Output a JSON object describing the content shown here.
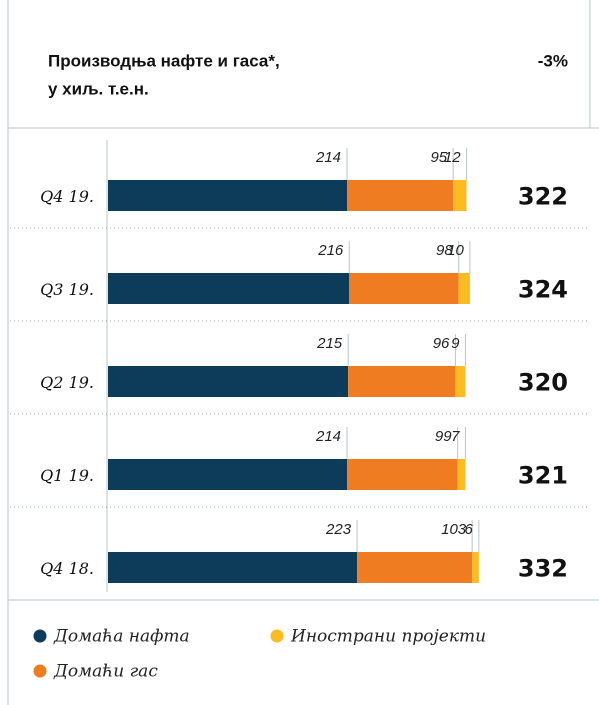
{
  "chart_data": {
    "type": "bar",
    "title": "Производња нафте и гаса*,",
    "subtitle": "у хиљ. т.е.н.",
    "change": "-3%",
    "orientation": "horizontal",
    "stacked": true,
    "categories": [
      "Q4 19.",
      "Q3 19.",
      "Q2 19.",
      "Q1 19.",
      "Q4 18."
    ],
    "series": [
      {
        "name": "Домаћа нафта",
        "color": "#0d3b5a",
        "values": [
          214,
          216,
          215,
          214,
          223
        ]
      },
      {
        "name": "Домаћи гас",
        "color": "#f07c22",
        "values": [
          95,
          98,
          96,
          99,
          103
        ]
      },
      {
        "name": "Инострани пројекти",
        "color": "#fbbb21",
        "values": [
          12,
          10,
          9,
          7,
          6
        ]
      }
    ],
    "totals": [
      322,
      324,
      320,
      321,
      332
    ]
  }
}
